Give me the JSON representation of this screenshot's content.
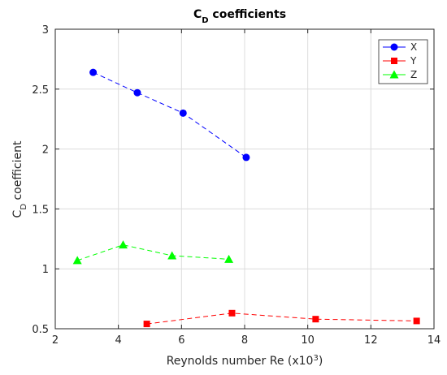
{
  "chart_data": {
    "type": "line",
    "title": "C_D coefficients",
    "title_parts": {
      "main": "C",
      "sub": "D",
      "rest": " coefficients"
    },
    "xlabel": "Reynolds number Re (x10^3)",
    "xlabel_parts": {
      "main": "Reynolds number Re (x10",
      "sup": "3",
      "rest": ")"
    },
    "ylabel": "C_D coefficient",
    "ylabel_parts": {
      "main": "C",
      "sub": "D",
      "rest": " coefficient"
    },
    "xlim": [
      2,
      14
    ],
    "ylim": [
      0.5,
      3
    ],
    "xticks": [
      2,
      4,
      6,
      8,
      10,
      12,
      14
    ],
    "yticks": [
      0.5,
      1,
      1.5,
      2,
      2.5,
      3
    ],
    "xtick_labels": [
      "2",
      "4",
      "6",
      "8",
      "10",
      "12",
      "14"
    ],
    "ytick_labels": [
      "0.5",
      "1",
      "1.5",
      "2",
      "2.5",
      "3"
    ],
    "grid": true,
    "legend_position": "top-right",
    "series": [
      {
        "name": "X",
        "color": "#0000ff",
        "marker": "circle",
        "x": [
          3.2,
          4.6,
          6.05,
          8.05
        ],
        "y": [
          2.64,
          2.47,
          2.3,
          1.93
        ]
      },
      {
        "name": "Y",
        "color": "#ff0000",
        "marker": "square",
        "x": [
          4.9,
          7.6,
          10.25,
          13.45
        ],
        "y": [
          0.54,
          0.63,
          0.58,
          0.565
        ]
      },
      {
        "name": "Z",
        "color": "#00ff00",
        "marker": "triangle",
        "x": [
          2.7,
          4.15,
          5.7,
          7.5
        ],
        "y": [
          1.07,
          1.2,
          1.11,
          1.08
        ]
      }
    ]
  }
}
